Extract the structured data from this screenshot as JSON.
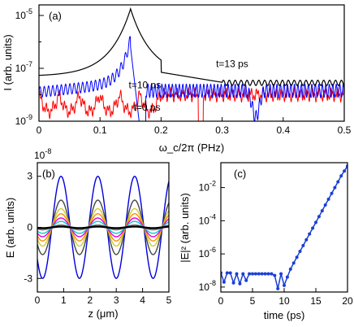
{
  "chart_data": [
    {
      "panel": "(a)",
      "type": "line",
      "xlabel": "ω_c/2π (PHz)",
      "ylabel": "I (arb. units)",
      "xlim": [
        0,
        0.5
      ],
      "ylim_log10": [
        -9,
        -4.6
      ],
      "yscale": "log",
      "x_ticks": [
        "0",
        "0.1",
        "0.2",
        "0.3",
        "0.4",
        "0.5"
      ],
      "y_ticks": [
        {
          "value": -5,
          "label": "10"
        },
        {
          "value": -7,
          "label": "10"
        },
        {
          "value": -9,
          "label": "10"
        }
      ],
      "y_tick_exponents": [
        "-5",
        "-7",
        "-9"
      ],
      "annotations": [
        {
          "text": "t=13 ps",
          "x": 0.29,
          "y_log10": -6.95
        },
        {
          "text": "t=10 ps",
          "x": 0.147,
          "y_log10": -7.75
        },
        {
          "text": "t=0 ps",
          "x": 0.155,
          "y_log10": -8.6
        }
      ],
      "series": [
        {
          "name": "t=0 ps",
          "color": "#ff0000",
          "base_log10": -8.0,
          "ripple_log10": 0.45
        },
        {
          "name": "t=10 ps",
          "color": "#0000ff",
          "base_log10": -7.9,
          "peak_x": 0.15,
          "peak_log10": -6.2
        },
        {
          "name": "t=13 ps",
          "color": "#000000",
          "base_log10": -7.3,
          "peak_x": 0.15,
          "peak_log10": -4.75
        }
      ]
    },
    {
      "panel": "(b)",
      "type": "line",
      "xlabel": "z (μm)",
      "ylabel": "E (arb. units)",
      "multiplier_base": "10",
      "multiplier_exponent": "-8",
      "xlim": [
        0,
        5
      ],
      "ylim": [
        -3.8,
        3.8
      ],
      "x_ticks": [
        "0",
        "1",
        "2",
        "3",
        "4",
        "5"
      ],
      "y_ticks": [
        "3",
        "0",
        "-3"
      ],
      "wavelength_um": 1.4,
      "series": [
        {
          "amplitude": 3.0,
          "color": "#0000dd"
        },
        {
          "amplitude": 1.6,
          "color": "#444444"
        },
        {
          "amplitude": 1.1,
          "color": "#cccc33"
        },
        {
          "amplitude": 0.8,
          "color": "#ff8c00"
        },
        {
          "amplitude": 0.55,
          "color": "#dd00dd"
        },
        {
          "amplitude": 0.35,
          "color": "#00cccc"
        },
        {
          "amplitude": 0.15,
          "color": "#888888"
        },
        {
          "amplitude": 0.05,
          "color": "#000000"
        }
      ]
    },
    {
      "panel": "(c)",
      "type": "line",
      "xlabel": "time (ps)",
      "ylabel": "|E|² (arb. units)",
      "yscale": "log",
      "xlim": [
        0,
        20
      ],
      "ylim_log10": [
        -8.3,
        -0.5
      ],
      "x_ticks": [
        "0",
        "5",
        "10",
        "15",
        "20"
      ],
      "y_ticks": [
        {
          "value": -2,
          "label": "10"
        },
        {
          "value": -4,
          "label": "10"
        },
        {
          "value": -6,
          "label": "10"
        },
        {
          "value": -8,
          "label": "10"
        }
      ],
      "y_tick_exponents": [
        "-2",
        "-4",
        "-6",
        "-8"
      ],
      "color": "#1a3fd6",
      "x": [
        0,
        0.5,
        1,
        1.5,
        2,
        2.5,
        3,
        3.5,
        4,
        4.5,
        5,
        5.5,
        6,
        6.5,
        7,
        7.5,
        8,
        8.5,
        9,
        9.5,
        10,
        10.5,
        11,
        11.5,
        12,
        12.5,
        13,
        13.5,
        14,
        14.5,
        15,
        15.5,
        16,
        16.5,
        17,
        17.5,
        18,
        18.5,
        19,
        19.5,
        20
      ],
      "y_log10": [
        -7.15,
        -7.7,
        -7.15,
        -7.15,
        -7.75,
        -7.2,
        -7.8,
        -7.2,
        -7.6,
        -7.2,
        -7.2,
        -7.2,
        -7.2,
        -7.2,
        -7.2,
        -7.2,
        -7.2,
        -7.3,
        -8.1,
        -7.2,
        -7.9,
        -7.4,
        -6.92,
        -6.55,
        -6.2,
        -5.85,
        -5.5,
        -5.15,
        -4.8,
        -4.45,
        -4.1,
        -3.75,
        -3.4,
        -3.05,
        -2.7,
        -2.35,
        -2.0,
        -1.65,
        -1.3,
        -1.0,
        -0.7
      ]
    }
  ]
}
